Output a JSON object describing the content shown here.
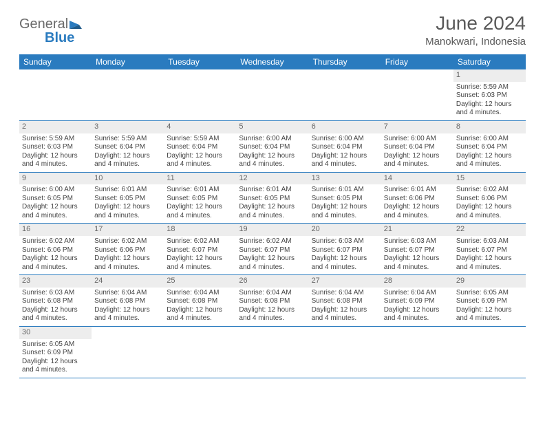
{
  "brand": {
    "part1": "General",
    "part2": "Blue"
  },
  "title": "June 2024",
  "location": "Manokwari, Indonesia",
  "colors": {
    "header_bg": "#2a7bbf",
    "header_text": "#ffffff",
    "row_border": "#2a7bbf",
    "shade_bg": "#f0f0f0",
    "day_text": "#444444",
    "title_text": "#5a5a5a"
  },
  "dayHeaders": [
    "Sunday",
    "Monday",
    "Tuesday",
    "Wednesday",
    "Thursday",
    "Friday",
    "Saturday"
  ],
  "weeks": [
    [
      null,
      null,
      null,
      null,
      null,
      null,
      {
        "d": "1",
        "sr": "5:59 AM",
        "ss": "6:03 PM",
        "dl": "12 hours and 4 minutes."
      }
    ],
    [
      {
        "d": "2",
        "sr": "5:59 AM",
        "ss": "6:03 PM",
        "dl": "12 hours and 4 minutes."
      },
      {
        "d": "3",
        "sr": "5:59 AM",
        "ss": "6:04 PM",
        "dl": "12 hours and 4 minutes."
      },
      {
        "d": "4",
        "sr": "5:59 AM",
        "ss": "6:04 PM",
        "dl": "12 hours and 4 minutes."
      },
      {
        "d": "5",
        "sr": "6:00 AM",
        "ss": "6:04 PM",
        "dl": "12 hours and 4 minutes."
      },
      {
        "d": "6",
        "sr": "6:00 AM",
        "ss": "6:04 PM",
        "dl": "12 hours and 4 minutes."
      },
      {
        "d": "7",
        "sr": "6:00 AM",
        "ss": "6:04 PM",
        "dl": "12 hours and 4 minutes."
      },
      {
        "d": "8",
        "sr": "6:00 AM",
        "ss": "6:04 PM",
        "dl": "12 hours and 4 minutes."
      }
    ],
    [
      {
        "d": "9",
        "sr": "6:00 AM",
        "ss": "6:05 PM",
        "dl": "12 hours and 4 minutes."
      },
      {
        "d": "10",
        "sr": "6:01 AM",
        "ss": "6:05 PM",
        "dl": "12 hours and 4 minutes."
      },
      {
        "d": "11",
        "sr": "6:01 AM",
        "ss": "6:05 PM",
        "dl": "12 hours and 4 minutes."
      },
      {
        "d": "12",
        "sr": "6:01 AM",
        "ss": "6:05 PM",
        "dl": "12 hours and 4 minutes."
      },
      {
        "d": "13",
        "sr": "6:01 AM",
        "ss": "6:05 PM",
        "dl": "12 hours and 4 minutes."
      },
      {
        "d": "14",
        "sr": "6:01 AM",
        "ss": "6:06 PM",
        "dl": "12 hours and 4 minutes."
      },
      {
        "d": "15",
        "sr": "6:02 AM",
        "ss": "6:06 PM",
        "dl": "12 hours and 4 minutes."
      }
    ],
    [
      {
        "d": "16",
        "sr": "6:02 AM",
        "ss": "6:06 PM",
        "dl": "12 hours and 4 minutes."
      },
      {
        "d": "17",
        "sr": "6:02 AM",
        "ss": "6:06 PM",
        "dl": "12 hours and 4 minutes."
      },
      {
        "d": "18",
        "sr": "6:02 AM",
        "ss": "6:07 PM",
        "dl": "12 hours and 4 minutes."
      },
      {
        "d": "19",
        "sr": "6:02 AM",
        "ss": "6:07 PM",
        "dl": "12 hours and 4 minutes."
      },
      {
        "d": "20",
        "sr": "6:03 AM",
        "ss": "6:07 PM",
        "dl": "12 hours and 4 minutes."
      },
      {
        "d": "21",
        "sr": "6:03 AM",
        "ss": "6:07 PM",
        "dl": "12 hours and 4 minutes."
      },
      {
        "d": "22",
        "sr": "6:03 AM",
        "ss": "6:07 PM",
        "dl": "12 hours and 4 minutes."
      }
    ],
    [
      {
        "d": "23",
        "sr": "6:03 AM",
        "ss": "6:08 PM",
        "dl": "12 hours and 4 minutes."
      },
      {
        "d": "24",
        "sr": "6:04 AM",
        "ss": "6:08 PM",
        "dl": "12 hours and 4 minutes."
      },
      {
        "d": "25",
        "sr": "6:04 AM",
        "ss": "6:08 PM",
        "dl": "12 hours and 4 minutes."
      },
      {
        "d": "26",
        "sr": "6:04 AM",
        "ss": "6:08 PM",
        "dl": "12 hours and 4 minutes."
      },
      {
        "d": "27",
        "sr": "6:04 AM",
        "ss": "6:08 PM",
        "dl": "12 hours and 4 minutes."
      },
      {
        "d": "28",
        "sr": "6:04 AM",
        "ss": "6:09 PM",
        "dl": "12 hours and 4 minutes."
      },
      {
        "d": "29",
        "sr": "6:05 AM",
        "ss": "6:09 PM",
        "dl": "12 hours and 4 minutes."
      }
    ],
    [
      {
        "d": "30",
        "sr": "6:05 AM",
        "ss": "6:09 PM",
        "dl": "12 hours and 4 minutes."
      },
      null,
      null,
      null,
      null,
      null,
      null
    ]
  ],
  "labels": {
    "sunrise": "Sunrise:",
    "sunset": "Sunset:",
    "daylight": "Daylight:"
  }
}
